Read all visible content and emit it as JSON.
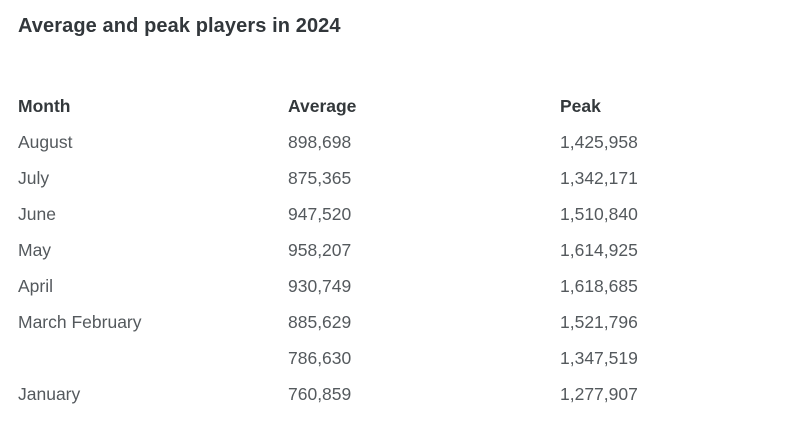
{
  "page": {
    "title": "Average and peak players in 2024"
  },
  "table": {
    "headers": {
      "month": "Month",
      "average": "Average",
      "peak": "Peak"
    },
    "rows": [
      {
        "month": "August",
        "average": "898,698",
        "peak": "1,425,958"
      },
      {
        "month": "July",
        "average": "875,365",
        "peak": "1,342,171"
      },
      {
        "month": "June",
        "average": "947,520",
        "peak": "1,510,840"
      },
      {
        "month": "May",
        "average": "958,207",
        "peak": "1,614,925"
      },
      {
        "month": "April",
        "average": "930,749",
        "peak": "1,618,685"
      },
      {
        "month": "March February",
        "average": "885,629",
        "peak": "1,521,796"
      },
      {
        "month": "",
        "average": "786,630",
        "peak": "1,347,519"
      },
      {
        "month": "January",
        "average": "760,859",
        "peak": "1,277,907"
      }
    ]
  },
  "colors": {
    "background": "#ffffff",
    "title_text": "#32373b",
    "header_text": "#33383b",
    "cell_text": "#54595d"
  },
  "chart_data": {
    "type": "table",
    "title": "Average and peak players in 2024",
    "columns": [
      "Month",
      "Average",
      "Peak"
    ],
    "categories": [
      "August",
      "July",
      "June",
      "May",
      "April",
      "March February",
      "",
      "January"
    ],
    "series": [
      {
        "name": "Average",
        "values": [
          898698,
          875365,
          947520,
          958207,
          930749,
          885629,
          786630,
          760859
        ]
      },
      {
        "name": "Peak",
        "values": [
          1425958,
          1342171,
          1510840,
          1614925,
          1618685,
          1521796,
          1347519,
          1277907
        ]
      }
    ],
    "layout": {
      "grid": false,
      "alignment": "left-aligned columns",
      "header_row": true
    }
  }
}
